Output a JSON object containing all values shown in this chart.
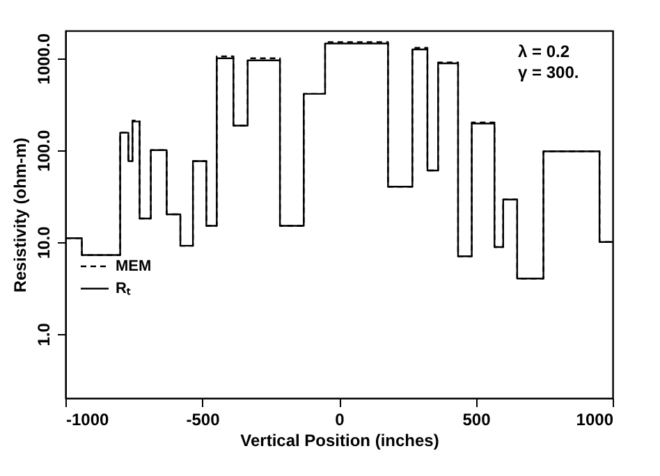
{
  "chart_data": {
    "type": "step",
    "xlabel": "Vertical Position (inches)",
    "ylabel": "Resistivity (ohm-m)",
    "annotations": [
      "λ = 0.2",
      "γ = 300."
    ],
    "x": [
      -1000,
      -940,
      -800,
      -770,
      -755,
      -729,
      -688,
      -630,
      -580,
      -534,
      -485,
      -447,
      -386,
      -334,
      -216,
      -129,
      -51,
      179,
      268,
      323,
      362,
      435,
      485,
      568,
      600,
      651,
      747,
      952,
      1000
    ],
    "series": [
      {
        "name": "MEM",
        "color": "#000000",
        "line_style": "dashed",
        "values": [
          11,
          7.2,
          155,
          76,
          210,
          18,
          100,
          20,
          9.1,
          76,
          15,
          1050,
          185,
          1000,
          15,
          410,
          1500,
          40,
          1300,
          60,
          900,
          7,
          200,
          8.8,
          29,
          4,
          97,
          10,
          10
        ]
      },
      {
        "name": "Rₜ",
        "color": "#000000",
        "line_style": "solid",
        "values": [
          11,
          7.2,
          155,
          76,
          205,
          18,
          100,
          20,
          9.1,
          76,
          15,
          1000,
          185,
          950,
          15,
          410,
          1450,
          40,
          1250,
          60,
          880,
          7,
          195,
          8.8,
          29,
          4,
          97,
          10,
          10
        ]
      }
    ],
    "log": "y",
    "xlim": [
      -1000,
      1000
    ],
    "xticks": [
      -1000,
      -500,
      0,
      500,
      1000
    ],
    "ylim": [
      0.2,
      2000
    ],
    "yticks": [
      {
        "value": 1,
        "label": "1.0"
      },
      {
        "value": 10,
        "label": "10.0"
      },
      {
        "value": 100,
        "label": "100.0"
      },
      {
        "value": 1000,
        "label": "1000.0"
      }
    ],
    "grid": false,
    "legend": "left"
  }
}
